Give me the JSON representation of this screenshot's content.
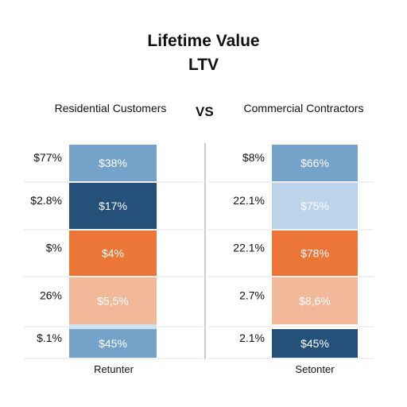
{
  "title": "Lifetime Value",
  "subtitle": "LTV",
  "vs_label": "VS",
  "chart_data": [
    {
      "type": "bar",
      "title": "Residential Customers",
      "xlabel": "Retunter",
      "categories": [
        "$77%",
        "$2.8%",
        "$%",
        "26%",
        "$.1%"
      ],
      "series": [
        {
          "values": [
            "$38%",
            "$17%",
            "$4%",
            "$5,5%",
            "$45%"
          ],
          "colors": [
            "#75a2c9",
            "#24507a",
            "#ec7538",
            "#f2b89a",
            "#75a2c9"
          ]
        }
      ],
      "grid": true
    },
    {
      "type": "bar",
      "title": "Commercial Contractors",
      "xlabel": "Setonter",
      "categories": [
        "$8%",
        "22.1%",
        "22.1%",
        "2.7%",
        "2.1%"
      ],
      "series": [
        {
          "values": [
            "$66%",
            "$75%",
            "$78%",
            "$8,6%",
            "$45%"
          ],
          "colors": [
            "#75a2c9",
            "#bcd3ea",
            "#ec7538",
            "#f2b89a",
            "#24507a"
          ]
        }
      ],
      "grid": true
    }
  ]
}
